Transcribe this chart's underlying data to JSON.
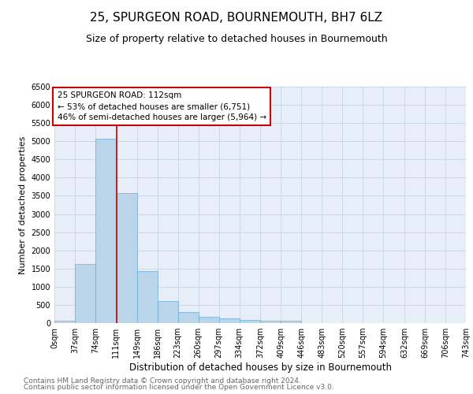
{
  "title": "25, SPURGEON ROAD, BOURNEMOUTH, BH7 6LZ",
  "subtitle": "Size of property relative to detached houses in Bournemouth",
  "xlabel": "Distribution of detached houses by size in Bournemouth",
  "ylabel": "Number of detached properties",
  "footnote1": "Contains HM Land Registry data © Crown copyright and database right 2024.",
  "footnote2": "Contains public sector information licensed under the Open Government Licence v3.0.",
  "bar_edges": [
    0,
    37,
    74,
    111,
    149,
    186,
    223,
    260,
    297,
    334,
    372,
    409,
    446,
    483,
    520,
    557,
    594,
    632,
    669,
    706,
    743
  ],
  "bar_heights": [
    70,
    1630,
    5080,
    3580,
    1420,
    600,
    310,
    165,
    120,
    90,
    55,
    55,
    0,
    0,
    0,
    0,
    0,
    0,
    0,
    0
  ],
  "bar_color": "#bad4ea",
  "bar_edge_color": "#6baed6",
  "bar_linewidth": 0.5,
  "vline_x": 112,
  "vline_color": "#cc0000",
  "vline_linewidth": 1.2,
  "annotation_text": "25 SPURGEON ROAD: 112sqm\n← 53% of detached houses are smaller (6,751)\n46% of semi-detached houses are larger (5,964) →",
  "annotation_box_color": "#cc0000",
  "annotation_fontsize": 7.5,
  "ylim": [
    0,
    6500
  ],
  "yticks": [
    0,
    500,
    1000,
    1500,
    2000,
    2500,
    3000,
    3500,
    4000,
    4500,
    5000,
    5500,
    6000,
    6500
  ],
  "xtick_labels": [
    "0sqm",
    "37sqm",
    "74sqm",
    "111sqm",
    "149sqm",
    "186sqm",
    "223sqm",
    "260sqm",
    "297sqm",
    "334sqm",
    "372sqm",
    "409sqm",
    "446sqm",
    "483sqm",
    "520sqm",
    "557sqm",
    "594sqm",
    "632sqm",
    "669sqm",
    "706sqm",
    "743sqm"
  ],
  "grid_color": "#c8d4e4",
  "background_color": "#e8eef8",
  "title_fontsize": 11,
  "subtitle_fontsize": 9,
  "xlabel_fontsize": 8.5,
  "ylabel_fontsize": 8,
  "tick_fontsize": 7,
  "footnote_fontsize": 6.5
}
